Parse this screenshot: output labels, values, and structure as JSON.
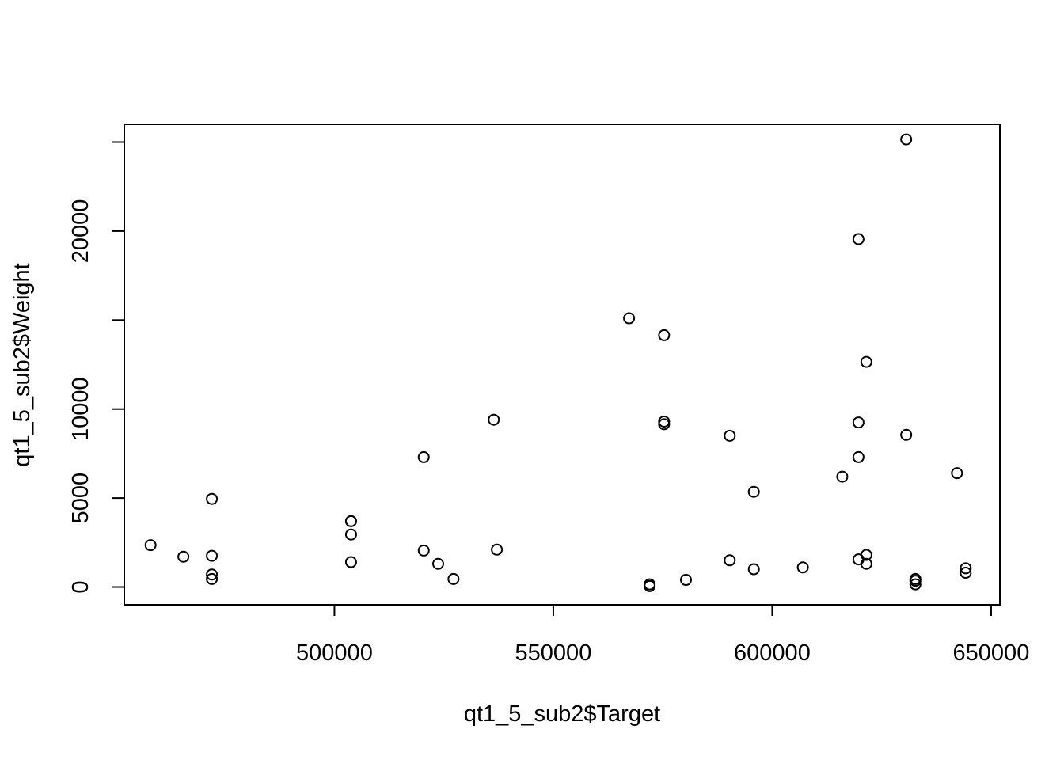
{
  "chart_data": {
    "type": "scatter",
    "title": "",
    "xlabel": "qt1_5_sub2$Target",
    "ylabel": "qt1_5_sub2$Weight",
    "xlim": [
      452000,
      652000
    ],
    "ylim": [
      -1000,
      26000
    ],
    "xticks": [
      500000,
      550000,
      600000,
      650000
    ],
    "xtick_labels": [
      "500000",
      "550000",
      "600000",
      "650000"
    ],
    "yticks": [
      0,
      5000,
      10000,
      15000,
      20000,
      25000
    ],
    "ytick_labels": [
      "0",
      "5000",
      "10000",
      "",
      "20000",
      ""
    ],
    "grid": false,
    "legend": "none",
    "point_style": "open-circle",
    "point_color": "#000000",
    "x": [
      458000,
      465500,
      472000,
      472000,
      472000,
      472000,
      503800,
      503800,
      503800,
      503800,
      520400,
      520400,
      523700,
      527200,
      536400,
      537100,
      567300,
      572000,
      572000,
      575300,
      575300,
      575300,
      580300,
      590300,
      590300,
      595800,
      595800,
      607000,
      616000,
      619700,
      619700,
      619700,
      619700,
      621500,
      621500,
      621500,
      630600,
      630600,
      632700,
      632700,
      632700,
      642200,
      644200,
      644200
    ],
    "y": [
      2350,
      1700,
      4950,
      1750,
      700,
      450,
      3700,
      2950,
      1400,
      3700,
      7300,
      2050,
      1300,
      450,
      9400,
      2100,
      15100,
      150,
      50,
      14150,
      9300,
      9150,
      400,
      1500,
      8500,
      5350,
      1000,
      1100,
      6200,
      19550,
      9250,
      7300,
      1550,
      12650,
      1800,
      1300,
      25150,
      8550,
      450,
      350,
      150,
      6400,
      1050,
      800
    ]
  }
}
